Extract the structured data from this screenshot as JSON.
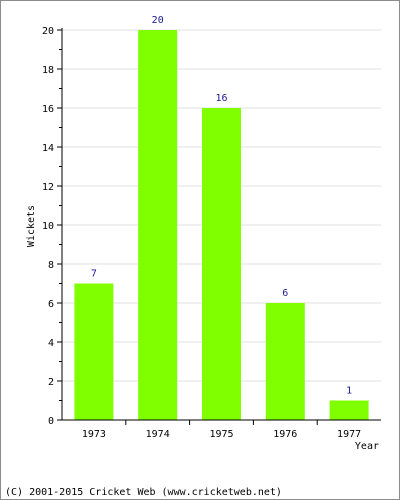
{
  "chart_data": {
    "type": "bar",
    "categories": [
      "1973",
      "1974",
      "1975",
      "1976",
      "1977"
    ],
    "values": [
      7,
      20,
      16,
      6,
      1
    ],
    "data_labels": [
      "7",
      "20",
      "16",
      "6",
      "1"
    ],
    "title": "",
    "xlabel": "Year",
    "ylabel": "Wickets",
    "ylim": [
      0,
      20
    ],
    "yticks": [
      0,
      2,
      4,
      6,
      8,
      10,
      12,
      14,
      16,
      18,
      20
    ],
    "grid": true,
    "bar_color": "#80ff00"
  },
  "footer": {
    "copyright": "(C) 2001-2015 Cricket Web (www.cricketweb.net)"
  }
}
